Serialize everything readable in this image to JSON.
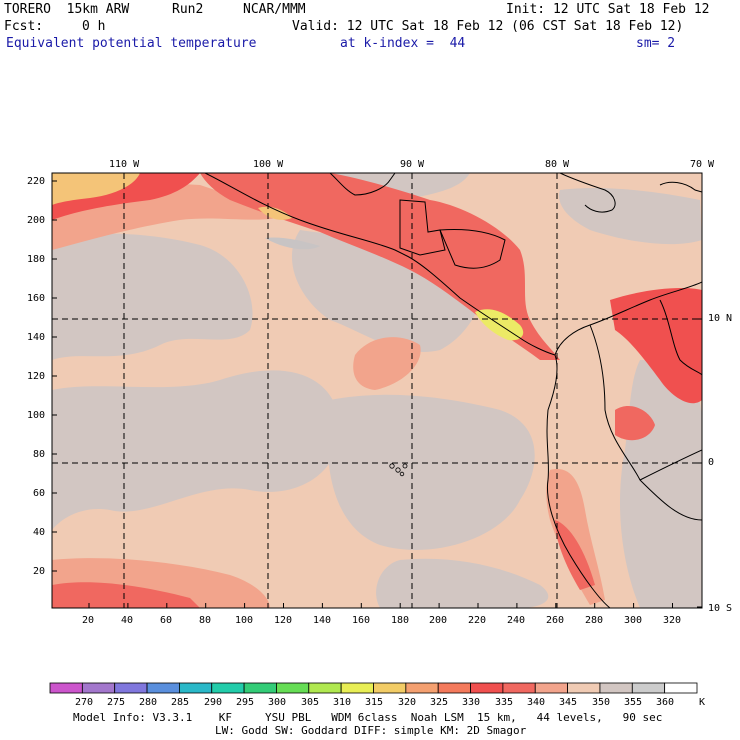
{
  "header": {
    "model": "TORERO  15km ARW",
    "run": "Run2",
    "org": "NCAR/MMM",
    "init": "Init: 12 UTC Sat 18 Feb 12",
    "fcst_label": "Fcst:",
    "fcst_value": "0 h",
    "valid": "Valid: 12 UTC Sat 18 Feb 12 (06 CST Sat 18 Feb 12)",
    "field": "Equivalent potential temperature",
    "level": "at k-index =  44",
    "smoothing": "sm= 2"
  },
  "map": {
    "top_lon_labels": [
      "110 W",
      "100 W",
      "90 W",
      "80 W",
      "70 W"
    ],
    "left_grid_labels": [
      "220",
      "200",
      "180",
      "160",
      "140",
      "120",
      "100",
      "80",
      "60",
      "40",
      "20"
    ],
    "bottom_grid_labels": [
      "20",
      "40",
      "60",
      "80",
      "100",
      "120",
      "140",
      "160",
      "180",
      "200",
      "220",
      "240",
      "260",
      "280",
      "300",
      "320"
    ],
    "right_lat_labels": [
      "10 N",
      "0",
      "10 S"
    ]
  },
  "colorbar": {
    "unit": "K",
    "labels": [
      "270",
      "275",
      "280",
      "285",
      "290",
      "295",
      "300",
      "305",
      "310",
      "315",
      "320",
      "325",
      "330",
      "335",
      "340",
      "345",
      "350",
      "355",
      "360"
    ],
    "colors": [
      "#cc55cc",
      "#a377cc",
      "#8077dd",
      "#5a8fdd",
      "#2ab8c8",
      "#22ccaa",
      "#33cc77",
      "#66dd55",
      "#b0e850",
      "#e8ee55",
      "#f2cc66",
      "#f4a070",
      "#f47a5c",
      "#f0504f",
      "#f06860",
      "#f2a48c",
      "#f0cbb4",
      "#d2c6c2",
      "#cccccc",
      "#ffffff"
    ]
  },
  "footer": {
    "line1": "Model Info: V3.3.1    KF     YSU PBL   WDM 6class  Noah LSM  15 km,   44 levels,   90 sec",
    "line2": "LW: Godd SW: Goddard DIFF: simple KM: 2D Smagor"
  }
}
